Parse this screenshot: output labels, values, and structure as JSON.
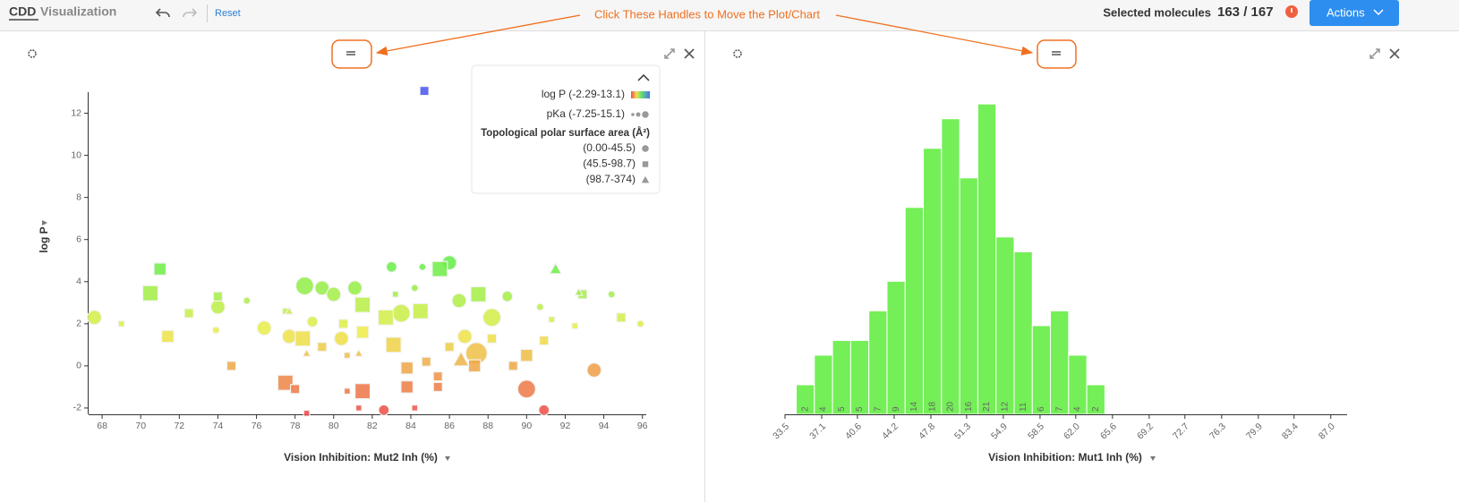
{
  "header": {
    "logo": "CDD",
    "app_name": "Visualization",
    "reset": "Reset",
    "annotation": "Click These Handles to Move the Plot/Chart",
    "selected_label": "Selected molecules",
    "selected_count": "163 / 167",
    "actions": "Actions"
  },
  "chart_data": [
    {
      "type": "scatter",
      "x_label": "Vision Inhibition: Mut2 Inh (%)",
      "y_label": "log P",
      "xlim": [
        67.3,
        96.2
      ],
      "ylim": [
        -2.3,
        13.0
      ],
      "xticks": [
        68,
        70,
        72,
        74,
        76,
        78,
        80,
        82,
        84,
        86,
        88,
        90,
        92,
        94,
        96
      ],
      "yticks": [
        -2,
        0,
        2,
        4,
        6,
        8,
        10,
        12
      ],
      "legend": {
        "color_title": "log P (-2.29-13.1)",
        "size_title": "pKa (-7.25-15.1)",
        "shape_title": "Topological polar surface area (Å²)"
      },
      "color_range": [
        -2.29,
        13.1
      ],
      "size_range": [
        -7.25,
        15.1
      ],
      "series": [
        {
          "name": "(0.00-45.5)",
          "marker": "circle",
          "x": [
            67.6,
            74.0,
            76.4,
            77.7,
            78.5,
            78.9,
            79.4,
            80.0,
            80.4,
            81.1,
            83.0,
            83.5,
            86.0,
            86.5,
            86.8,
            87.4,
            88.2,
            89.0,
            90.0,
            90.9,
            93.5,
            82.6,
            94.4,
            95.9,
            73.9,
            75.5,
            84.6,
            90.7,
            84.2
          ],
          "values": [
            2.3,
            2.8,
            1.8,
            1.4,
            3.8,
            2.1,
            3.7,
            3.4,
            1.3,
            3.7,
            4.7,
            2.5,
            4.9,
            3.1,
            1.4,
            0.6,
            2.3,
            3.3,
            -1.1,
            -2.1,
            -0.2,
            -2.1,
            3.4,
            2.0,
            1.7,
            3.1,
            4.7,
            2.8,
            3.7
          ],
          "sizes": [
            5,
            5,
            5,
            5,
            10,
            0,
            5,
            5,
            5,
            5,
            0,
            10,
            5,
            5,
            5,
            15,
            10,
            0,
            10,
            0,
            5,
            0,
            -5,
            -5,
            -5,
            -5,
            -5,
            -5,
            -5
          ]
        },
        {
          "name": "(45.5-98.7)",
          "marker": "square",
          "x": [
            84.7,
            71.0,
            70.5,
            74.0,
            69.0,
            72.5,
            71.4,
            74.7,
            77.5,
            78.0,
            78.6,
            78.4,
            79.4,
            80.5,
            81.5,
            81.5,
            81.5,
            80.7,
            81.3,
            82.7,
            83.1,
            83.8,
            83.8,
            84.2,
            84.5,
            85.5,
            85.4,
            85.4,
            84.8,
            86.0,
            87.5,
            87.3,
            88.2,
            89.3,
            90.0,
            90.9,
            92.5,
            92.9,
            94.9,
            91.3,
            83.2,
            77.5,
            80.7
          ],
          "values": [
            13.06,
            4.6,
            3.45,
            3.3,
            2.0,
            2.5,
            1.4,
            0.0,
            -0.8,
            -1.1,
            -2.25,
            1.3,
            0.9,
            2.0,
            2.9,
            1.6,
            -1.2,
            -1.2,
            -2.0,
            2.3,
            1.0,
            -0.1,
            -1.0,
            -2.0,
            2.6,
            4.6,
            -0.5,
            -1.0,
            0.2,
            0.9,
            3.4,
            0.0,
            1.3,
            0.0,
            0.5,
            1.2,
            1.9,
            3.4,
            2.3,
            2.2,
            3.4,
            2.6,
            0.5
          ],
          "sizes": [
            0,
            5,
            10,
            0,
            -5,
            0,
            5,
            0,
            10,
            0,
            -5,
            10,
            0,
            0,
            10,
            5,
            10,
            -5,
            -5,
            10,
            10,
            5,
            5,
            -5,
            10,
            10,
            0,
            0,
            0,
            0,
            10,
            5,
            0,
            0,
            5,
            0,
            -5,
            0,
            0,
            -5,
            -5,
            -5,
            -5
          ]
        },
        {
          "name": "(98.7-374)",
          "marker": "triangle",
          "x": [
            91.5,
            78.6,
            81.3,
            86.6,
            92.7,
            77.7
          ],
          "values": [
            4.6,
            0.6,
            0.6,
            0.3,
            3.5,
            2.6
          ],
          "sizes": [
            0,
            -5,
            -5,
            5,
            -5,
            -5
          ]
        }
      ]
    },
    {
      "type": "histogram",
      "x_label": "Vision Inhibition: Mut1 Inh (%)",
      "color": "#74ef57",
      "bins": [
        34.6,
        36.38,
        38.16,
        39.94,
        41.72,
        43.5,
        45.28,
        47.06,
        48.84,
        50.62,
        52.4,
        54.18,
        55.96,
        57.74,
        59.52,
        61.3,
        63.08,
        64.86
      ],
      "values": [
        2,
        4,
        5,
        5,
        7,
        9,
        14,
        18,
        20,
        16,
        21,
        12,
        11,
        6,
        7,
        4,
        2
      ],
      "xlim": [
        33.5,
        88.6
      ],
      "ylim": [
        0,
        21.8
      ],
      "xticks": [
        33.5,
        37.1,
        40.6,
        44.2,
        47.8,
        51.3,
        54.9,
        58.5,
        {
          "value": 62,
          "label": "62.0"
        },
        65.6,
        69.2,
        72.7,
        76.3,
        79.9,
        83.4,
        {
          "value": 87,
          "label": "87.0"
        }
      ]
    }
  ]
}
